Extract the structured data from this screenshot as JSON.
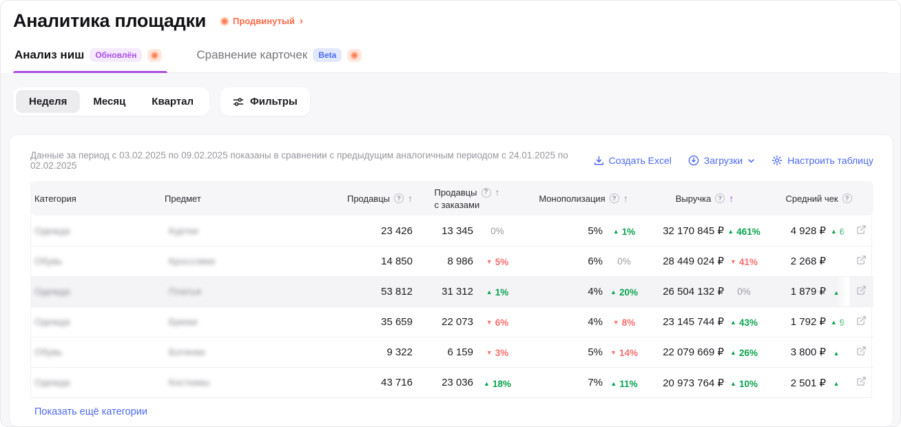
{
  "page_title": "Аналитика площадки",
  "plan_badge": {
    "label": "Продвинутый",
    "chevron": "›"
  },
  "tabs": {
    "niche": {
      "label": "Анализ ниш",
      "badge": "Обновлён",
      "active": true
    },
    "compare": {
      "label": "Сравнение карточек",
      "badge": "Beta",
      "active": false
    }
  },
  "controls": {
    "periods": {
      "week": "Неделя",
      "month": "Месяц",
      "quarter": "Квартал",
      "selected": "Неделя"
    },
    "filters_label": "Фильтры"
  },
  "card": {
    "period_note": "Данные за период с 03.02.2025 по 09.02.2025 показаны в сравнении с предыдущим аналогичным периодом с 24.01.2025 по 02.02.2025",
    "actions": {
      "excel_label": "Создать Excel",
      "downloads_label": "Загрузки",
      "configure_label": "Настроить таблицу"
    },
    "show_more_label": "Показать ещё категории"
  },
  "table": {
    "columns": {
      "category": "Категория",
      "subject": "Предмет",
      "sellers": "Продавцы",
      "sellers_with_orders_line1": "Продавцы",
      "sellers_with_orders_line2": "с заказами",
      "monopolization": "Монополизация",
      "revenue": "Выручка",
      "avg_check": "Средний чек"
    },
    "sort": {
      "active_column": "revenue",
      "direction": "up"
    },
    "rows": [
      {
        "category": "Одежда",
        "subject": "Куртки",
        "censored": true,
        "highlighted": false,
        "sellers": "23 426",
        "sellers_with_orders": "13 345",
        "sellers_with_orders_change": {
          "dir": "flat",
          "value": "0%"
        },
        "monopolization": "5%",
        "monopolization_change": {
          "dir": "up",
          "value": "1%"
        },
        "revenue": "32 170 845 ₽",
        "revenue_change": {
          "dir": "up",
          "value": "461%"
        },
        "avg_check": "4 928 ₽",
        "avg_check_change": {
          "dir": "up",
          "value": "6",
          "cut": true
        }
      },
      {
        "category": "Обувь",
        "subject": "Кроссовки",
        "censored": true,
        "highlighted": false,
        "sellers": "14 850",
        "sellers_with_orders": "8 986",
        "sellers_with_orders_change": {
          "dir": "down",
          "value": "5%"
        },
        "monopolization": "6%",
        "monopolization_change": {
          "dir": "flat",
          "value": "0%"
        },
        "revenue": "28 449 024 ₽",
        "revenue_change": {
          "dir": "down",
          "value": "41%"
        },
        "avg_check": "2 268 ₽",
        "avg_check_change": null
      },
      {
        "category": "Одежда",
        "subject": "Платья",
        "censored": true,
        "highlighted": true,
        "sellers": "53 812",
        "sellers_with_orders": "31 312",
        "sellers_with_orders_change": {
          "dir": "up",
          "value": "1%"
        },
        "monopolization": "4%",
        "monopolization_change": {
          "dir": "up",
          "value": "20%"
        },
        "revenue": "26 504 132 ₽",
        "revenue_change": {
          "dir": "flat",
          "value": "0%"
        },
        "avg_check": "1 879 ₽",
        "avg_check_change": {
          "dir": "up",
          "value": "",
          "cut": true
        }
      },
      {
        "category": "Одежда",
        "subject": "Брюки",
        "censored": true,
        "highlighted": false,
        "sellers": "35 659",
        "sellers_with_orders": "22 073",
        "sellers_with_orders_change": {
          "dir": "down",
          "value": "6%"
        },
        "monopolization": "4%",
        "monopolization_change": {
          "dir": "down",
          "value": "8%"
        },
        "revenue": "23 145 744 ₽",
        "revenue_change": {
          "dir": "up",
          "value": "43%"
        },
        "avg_check": "1 792 ₽",
        "avg_check_change": {
          "dir": "up",
          "value": "9",
          "cut": true
        }
      },
      {
        "category": "Обувь",
        "subject": "Ботинки",
        "censored": true,
        "highlighted": false,
        "sellers": "9 322",
        "sellers_with_orders": "6 159",
        "sellers_with_orders_change": {
          "dir": "down",
          "value": "3%"
        },
        "monopolization": "5%",
        "monopolization_change": {
          "dir": "down",
          "value": "14%"
        },
        "revenue": "22 079 669 ₽",
        "revenue_change": {
          "dir": "up",
          "value": "26%"
        },
        "avg_check": "3 800 ₽",
        "avg_check_change": {
          "dir": "up",
          "value": "",
          "cut": true
        }
      },
      {
        "category": "Одежда",
        "subject": "Костюмы",
        "censored": true,
        "highlighted": false,
        "sellers": "43 716",
        "sellers_with_orders": "23 036",
        "sellers_with_orders_change": {
          "dir": "up",
          "value": "18%"
        },
        "monopolization": "7%",
        "monopolization_change": {
          "dir": "up",
          "value": "11%"
        },
        "revenue": "20 973 764 ₽",
        "revenue_change": {
          "dir": "up",
          "value": "10%"
        },
        "avg_check": "2 501 ₽",
        "avg_check_change": {
          "dir": "up",
          "value": "",
          "cut": true
        }
      }
    ]
  },
  "colors": {
    "accent_purple": "#a44fe2",
    "link_blue": "#4c68f3",
    "positive_green": "#0aa34e",
    "negative_red": "#fb6e6e",
    "brand_orange": "#ff7a4c"
  }
}
